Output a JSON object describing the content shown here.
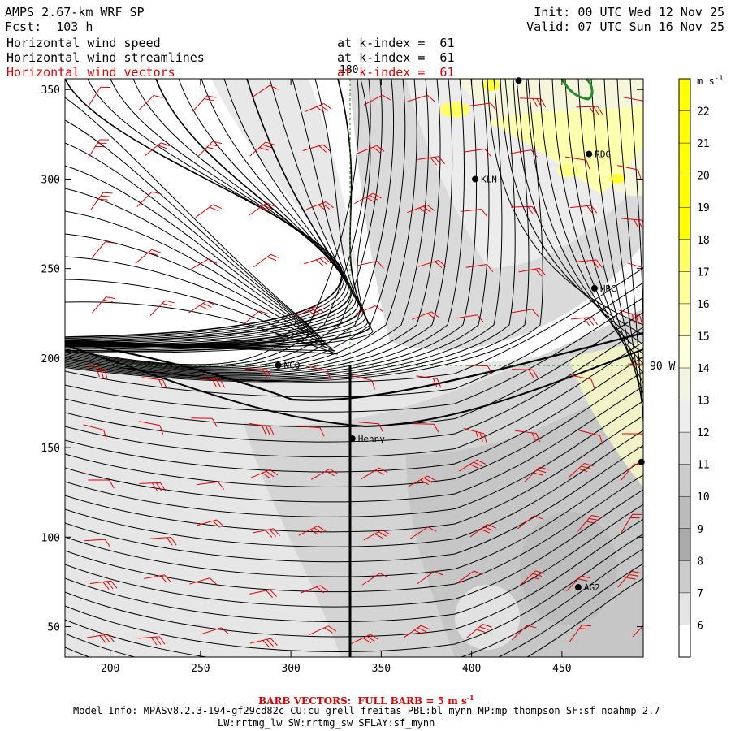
{
  "header": {
    "model_title": "AMPS 2.67-km WRF SP",
    "forecast": "Fcst:  103 h",
    "init": "Init: 00 UTC Wed 12 Nov 25",
    "valid": "Valid: 07 UTC Sun 16 Nov 25"
  },
  "fields": [
    {
      "name": "Horizontal wind speed",
      "level": "at k-index =  61",
      "color": "#000000"
    },
    {
      "name": "Horizontal wind streamlines",
      "level": "at k-index =  61",
      "color": "#000000"
    },
    {
      "name": "Horizontal wind vectors",
      "level": "at k-index =  61",
      "color": "#e00000"
    }
  ],
  "axes": {
    "x_ticks": [
      "200",
      "250",
      "300",
      "350",
      "400",
      "450"
    ],
    "y_ticks": [
      "350",
      "300",
      "250",
      "200",
      "150",
      "100",
      "50"
    ],
    "x_values": [
      200,
      250,
      300,
      350,
      400,
      450
    ],
    "y_values": [
      350,
      300,
      250,
      200,
      150,
      100,
      50
    ],
    "x_range": [
      175,
      495
    ],
    "y_range": [
      33,
      356
    ]
  },
  "grid_lines": {
    "meridian_label": "180",
    "parallel_label": "90 W",
    "meridian_x": 332,
    "parallel_y": 196,
    "color": "#228b22"
  },
  "stations": [
    {
      "name": "NCQ",
      "x": 293,
      "y": 196
    },
    {
      "name": "Henny",
      "x": 334,
      "y": 155
    },
    {
      "name": "KLN",
      "x": 402,
      "y": 300
    },
    {
      "name": "RDG",
      "x": 465,
      "y": 314
    },
    {
      "name": "HRC",
      "x": 468,
      "y": 239
    },
    {
      "name": "AG2",
      "x": 459,
      "y": 72
    },
    {
      "name": "",
      "x": 426,
      "y": 355
    },
    {
      "name": "",
      "x": 494,
      "y": 142
    }
  ],
  "colorbar": {
    "unit": "m s",
    "unit_exp": "-1",
    "labels": [
      "22",
      "21",
      "20",
      "19",
      "18",
      "17",
      "16",
      "15",
      "14",
      "13",
      "12",
      "11",
      "10",
      "9",
      "8",
      "7",
      "6"
    ],
    "values": [
      22,
      21,
      20,
      19,
      18,
      17,
      16,
      15,
      14,
      13,
      12,
      11,
      10,
      9,
      8,
      7,
      6
    ],
    "colors": [
      "#ffff00",
      "#ffff00",
      "#ffff00",
      "#ffff00",
      "#ffff00",
      "#ffff66",
      "#ffff99",
      "#ffffbb",
      "#ffffdd",
      "#f4f4e4",
      "#eeeeee",
      "#dddddd",
      "#cccccc",
      "#bbbbbb",
      "#aaaaaa",
      "#cccccc",
      "#e4e4e4",
      "#ffffff"
    ]
  },
  "footer": {
    "barb_note": "BARB VECTORS:  FULL BARB = 5 m s",
    "barb_exp": "-1",
    "model_info": "Model Info: MPASv8.2.3-194-gf29cd82c CU:cu_grell_freitas PBL:bl_mynn MP:mp_thompson SF:sf_noahmp 2.7",
    "schemes": "LW:rrtmg_lw SW:rrtmg_sw SFLAY:sf_mynn"
  },
  "colors": {
    "streamline": "#000000",
    "barb": "#e00000",
    "highlight": "#228b22",
    "title_red": "#e00000"
  }
}
